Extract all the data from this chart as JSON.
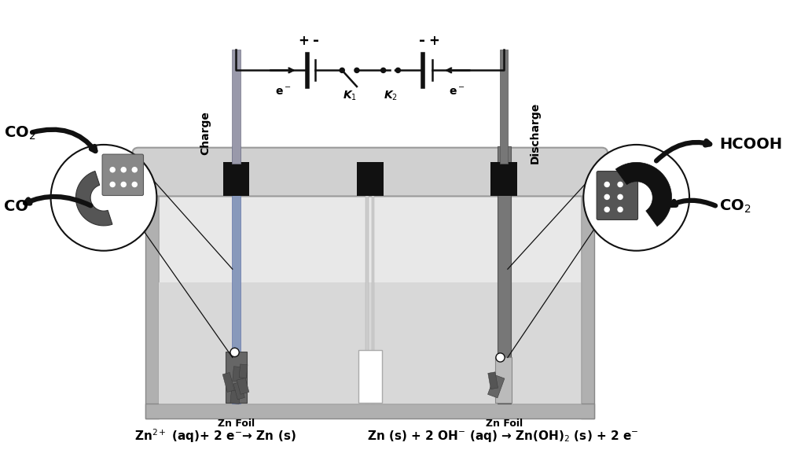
{
  "bg_color": "#ffffff",
  "eq1": "Zn$^{2+}$ (aq)+ 2 e$^{-}$→ Zn (s)",
  "eq2": "Zn (s) + 2 OH$^{-}$ (aq) → Zn(OH)$_2$ (s) + 2 e$^{-}$",
  "label_charge": "Charge",
  "label_discharge": "Discharge",
  "label_zn_foil": "Zn Foil",
  "label_co2_left": "CO$_2$",
  "label_co_left": "CO",
  "label_hcooh_right": "HCOOH",
  "label_co2_right": "CO$_2$",
  "label_k1": "K$_1$",
  "label_k2": "K$_2$",
  "label_e_left": "e$^-$",
  "label_e_right": "e$^-$",
  "cell_outer_color": "#c8c8c8",
  "cell_inner_color": "#e8e8e8",
  "liquid_color": "#d8d8d8",
  "cover_color": "#d0d0d0",
  "electrode_left_color": "#aaaacc",
  "electrode_right_color": "#888888",
  "electrode_mid_color": "#dddddd",
  "black_color": "#111111"
}
